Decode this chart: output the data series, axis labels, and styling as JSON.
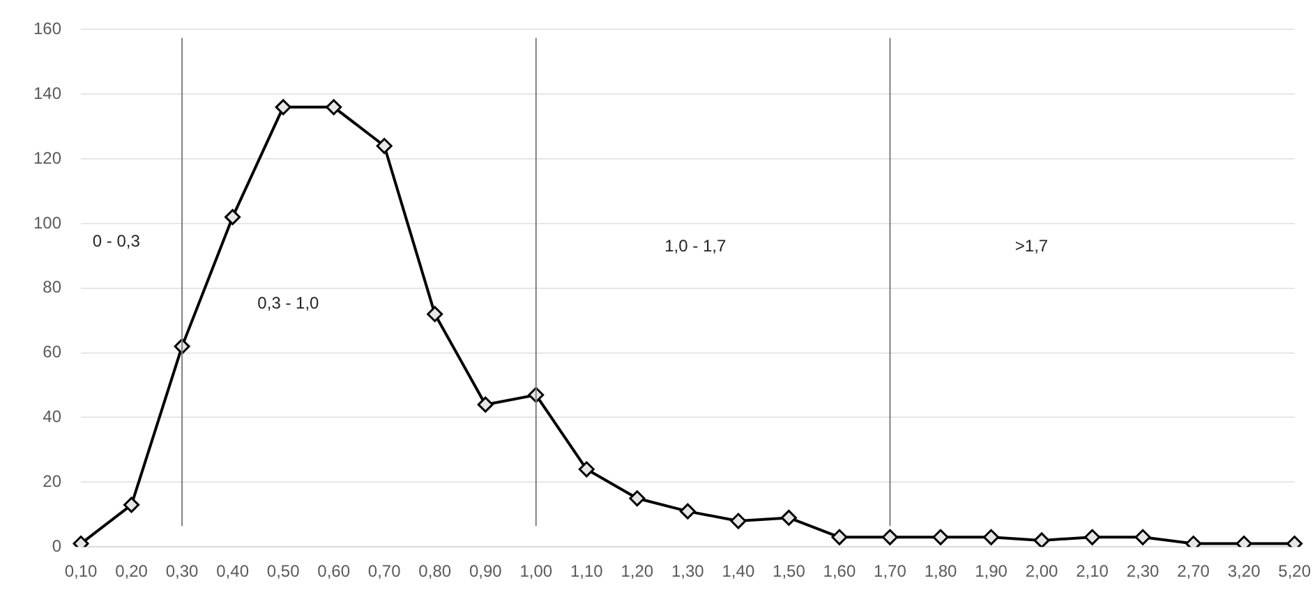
{
  "chart_data": {
    "type": "line",
    "categories": [
      "0,10",
      "0,20",
      "0,30",
      "0,40",
      "0,50",
      "0,60",
      "0,70",
      "0,80",
      "0,90",
      "1,00",
      "1,10",
      "1,20",
      "1,30",
      "1,40",
      "1,50",
      "1,60",
      "1,70",
      "1,80",
      "1,90",
      "2,00",
      "2,10",
      "2,30",
      "2,70",
      "3,20",
      "5,20"
    ],
    "series": [
      {
        "color": "#000000",
        "values": [
          1,
          13,
          62,
          102,
          136,
          136,
          124,
          72,
          44,
          47,
          24,
          15,
          11,
          8,
          9,
          3,
          3,
          3,
          3,
          2,
          3,
          3,
          1,
          1,
          1
        ]
      }
    ],
    "ylim": [
      0,
      160
    ],
    "yticks": [
      0,
      20,
      40,
      60,
      80,
      100,
      120,
      140,
      160
    ],
    "grid": "y",
    "legend": false,
    "marker": "diamond",
    "line_style": "solid",
    "ref_lines": [
      {
        "axis": "x",
        "value": "0,30",
        "color": "#7f7f7f"
      },
      {
        "axis": "x",
        "value": "1,00",
        "color": "#7f7f7f"
      },
      {
        "axis": "x",
        "value": "1,70",
        "color": "#7f7f7f"
      }
    ],
    "annotations": [
      "0 - 0,3",
      "0,3 - 1,0",
      "1,0 - 1,7",
      ">1,7"
    ]
  }
}
